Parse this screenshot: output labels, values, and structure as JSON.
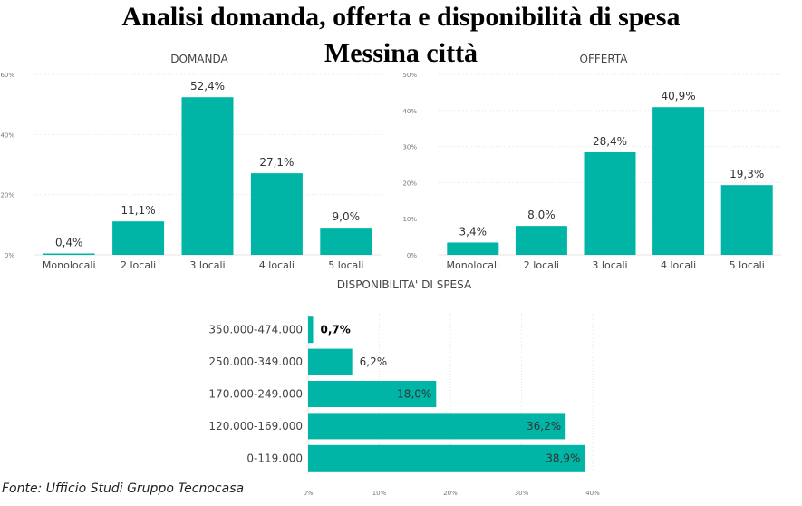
{
  "title": {
    "line1": "Analisi domanda, offerta e disponibilità di spesa",
    "line2": "Messina città"
  },
  "source": "Fonte: Ufficio Studi Gruppo Tecnocasa",
  "colors": {
    "bar": "#00b5a5",
    "grid": "#e6e6e6",
    "axis_text": "#777777",
    "label": "#333333"
  },
  "chart_data": [
    {
      "type": "bar",
      "title": "DOMANDA",
      "categories": [
        "Monolocali",
        "2 locali",
        "3 locali",
        "4 locali",
        "5 locali"
      ],
      "values": [
        0.4,
        11.1,
        52.4,
        27.1,
        9.0
      ],
      "data_labels": [
        "0,4%",
        "11,1%",
        "52,4%",
        "27,1%",
        "9,0%"
      ],
      "yticks": [
        "0%",
        "20%",
        "40%",
        "60%"
      ],
      "ylim": [
        0,
        60
      ],
      "grid": true
    },
    {
      "type": "bar",
      "title": "OFFERTA",
      "categories": [
        "Monolocali",
        "2 locali",
        "3 locali",
        "4 locali",
        "5 locali"
      ],
      "values": [
        3.4,
        8.0,
        28.4,
        40.9,
        19.3
      ],
      "data_labels": [
        "3,4%",
        "8,0%",
        "28,4%",
        "40,9%",
        "19,3%"
      ],
      "yticks": [
        "0%",
        "10%",
        "20%",
        "30%",
        "40%",
        "50%"
      ],
      "ylim": [
        0,
        50
      ],
      "grid": true
    },
    {
      "type": "bar",
      "orientation": "horizontal",
      "title": "DISPONIBILITA' DI SPESA",
      "categories": [
        "350.000-474.000",
        "250.000-349.000",
        "170.000-249.000",
        "120.000-169.000",
        "0-119.000"
      ],
      "values": [
        0.7,
        6.2,
        18.0,
        36.2,
        38.9
      ],
      "data_labels": [
        "0,7%",
        "6,2%",
        "18,0%",
        "36,2%",
        "38,9%"
      ],
      "xticks": [
        "0%",
        "10%",
        "20%",
        "30%",
        "40%"
      ],
      "xlim": [
        0,
        40
      ],
      "grid": true
    }
  ]
}
